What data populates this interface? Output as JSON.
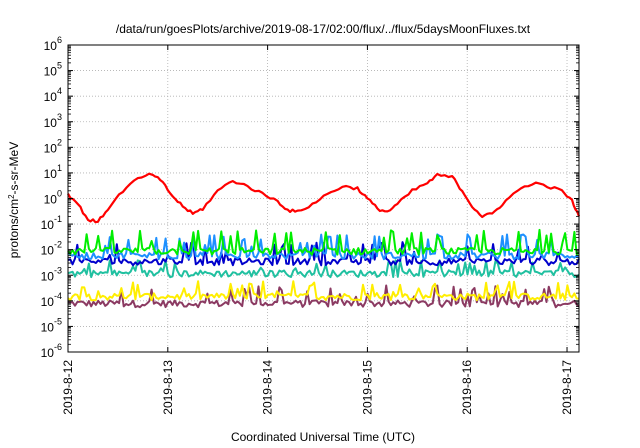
{
  "chart_data": {
    "type": "line",
    "title": "/data/run/goesPlots/archive/2019-08-17/02:00/flux/../flux/5daysMoonFluxes.txt",
    "xlabel": "Coordinated Universal Time (UTC)",
    "ylabel": "protons/cm²-s-sr-MeV",
    "ylabel_base": "protons/cm",
    "ylabel_sup": "2",
    "ylabel_rest": "-s-sr-MeV",
    "y_scale": "log",
    "ylim": [
      1e-06,
      1000000.0
    ],
    "y_ticks": [
      {
        "exp": "-6"
      },
      {
        "exp": "-5"
      },
      {
        "exp": "-4"
      },
      {
        "exp": "-3"
      },
      {
        "exp": "-2"
      },
      {
        "exp": "-1"
      },
      {
        "exp": "0"
      },
      {
        "exp": "1"
      },
      {
        "exp": "2"
      },
      {
        "exp": "3"
      },
      {
        "exp": "4"
      },
      {
        "exp": "5"
      },
      {
        "exp": "6"
      }
    ],
    "y_tick_base": "10",
    "x_ticks": [
      "2019-8-12",
      "2019-8-13",
      "2019-8-14",
      "2019-8-15",
      "2019-8-16",
      "2019-8-17"
    ],
    "x_range_days": [
      0,
      5.12
    ],
    "grid": true,
    "series": [
      {
        "color": "#ff0000",
        "points": [
          [
            0,
            1.5
          ],
          [
            0.1,
            0.6
          ],
          [
            0.2,
            0.15
          ],
          [
            0.3,
            0.12
          ],
          [
            0.4,
            0.4
          ],
          [
            0.55,
            2
          ],
          [
            0.7,
            6
          ],
          [
            0.85,
            9
          ],
          [
            0.95,
            4
          ],
          [
            1.05,
            1.2
          ],
          [
            1.15,
            0.5
          ],
          [
            1.25,
            0.25
          ],
          [
            1.35,
            0.4
          ],
          [
            1.5,
            2
          ],
          [
            1.65,
            5
          ],
          [
            1.8,
            3
          ],
          [
            1.95,
            1.5
          ],
          [
            2.1,
            0.8
          ],
          [
            2.2,
            0.35
          ],
          [
            2.3,
            0.3
          ],
          [
            2.45,
            0.6
          ],
          [
            2.6,
            1.5
          ],
          [
            2.75,
            3
          ],
          [
            2.9,
            2.5
          ],
          [
            3.0,
            1
          ],
          [
            3.1,
            0.4
          ],
          [
            3.2,
            0.3
          ],
          [
            3.3,
            0.6
          ],
          [
            3.45,
            2
          ],
          [
            3.6,
            4
          ],
          [
            3.7,
            8
          ],
          [
            3.85,
            7
          ],
          [
            3.95,
            2
          ],
          [
            4.05,
            0.5
          ],
          [
            4.15,
            0.2
          ],
          [
            4.25,
            0.25
          ],
          [
            4.35,
            0.6
          ],
          [
            4.5,
            2
          ],
          [
            4.65,
            4
          ],
          [
            4.8,
            3
          ],
          [
            4.95,
            2
          ],
          [
            5.05,
            0.8
          ],
          [
            5.12,
            0.2
          ]
        ]
      },
      {
        "color": "#00ee00",
        "base": 0.009,
        "spikes": 0.06
      },
      {
        "color": "#1e90ff",
        "base": 0.006,
        "spikes": 0.04
      },
      {
        "color": "#0000cc",
        "base": 0.0035,
        "spikes": 0.02
      },
      {
        "color": "#20c0a0",
        "base": 0.0012,
        "spikes": 0.004
      },
      {
        "color": "#ffee00",
        "base": 0.00015,
        "spikes": 0.0006
      },
      {
        "color": "#8b3a62",
        "base": 8e-05,
        "spikes": 0.0004
      }
    ]
  }
}
